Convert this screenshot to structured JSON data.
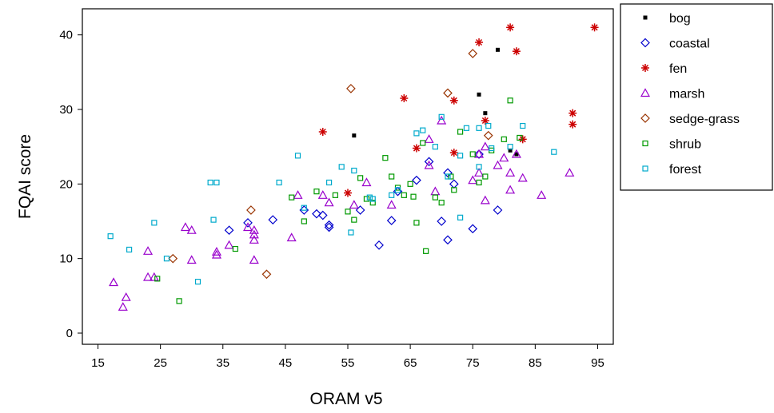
{
  "chart_data": {
    "type": "scatter",
    "xlabel": "ORAM v5",
    "ylabel": "FQAI score",
    "xlim": [
      12.5,
      97.5
    ],
    "ylim": [
      -1.5,
      43.5
    ],
    "xticks": [
      15,
      25,
      35,
      45,
      55,
      65,
      75,
      85,
      95
    ],
    "yticks": [
      0,
      10,
      20,
      30,
      40
    ],
    "grid": false,
    "legend_position": "right",
    "series": [
      {
        "name": "bog",
        "marker": "filled-square",
        "color": "#000000",
        "points": [
          [
            56,
            26.5
          ],
          [
            79,
            38
          ],
          [
            76,
            32
          ],
          [
            77,
            29.5
          ],
          [
            81,
            24.5
          ],
          [
            82,
            24
          ]
        ]
      },
      {
        "name": "coastal",
        "marker": "diamond",
        "color": "#0000cc",
        "points": [
          [
            36,
            13.8
          ],
          [
            39,
            14.8
          ],
          [
            43,
            15.2
          ],
          [
            48,
            16.5
          ],
          [
            50,
            16
          ],
          [
            51,
            15.8
          ],
          [
            52,
            14.5
          ],
          [
            52,
            14.2
          ],
          [
            57,
            16.5
          ],
          [
            60,
            11.8
          ],
          [
            62,
            15.1
          ],
          [
            63,
            19
          ],
          [
            66,
            20.5
          ],
          [
            68,
            23
          ],
          [
            70,
            15
          ],
          [
            71,
            21.5
          ],
          [
            71,
            12.5
          ],
          [
            72,
            20
          ],
          [
            75,
            14
          ],
          [
            76,
            24
          ],
          [
            79,
            16.5
          ]
        ]
      },
      {
        "name": "fen",
        "marker": "star",
        "color": "#cc0000",
        "points": [
          [
            51,
            27
          ],
          [
            55,
            18.8
          ],
          [
            64,
            31.5
          ],
          [
            66,
            24.8
          ],
          [
            72,
            31.2
          ],
          [
            72,
            24.2
          ],
          [
            76,
            39
          ],
          [
            77,
            28.5
          ],
          [
            81,
            41
          ],
          [
            82,
            37.8
          ],
          [
            83,
            26
          ],
          [
            91,
            29.5
          ],
          [
            91,
            28
          ],
          [
            94.5,
            41
          ]
        ]
      },
      {
        "name": "marsh",
        "marker": "triangle",
        "color": "#9900cc",
        "points": [
          [
            17.5,
            6.8
          ],
          [
            19,
            3.5
          ],
          [
            19.5,
            4.8
          ],
          [
            23,
            7.5
          ],
          [
            23,
            11
          ],
          [
            24,
            7.5
          ],
          [
            29,
            14.2
          ],
          [
            30,
            9.8
          ],
          [
            30,
            13.8
          ],
          [
            34,
            10.5
          ],
          [
            34,
            10.9
          ],
          [
            36,
            11.8
          ],
          [
            39,
            14.2
          ],
          [
            40,
            13.2
          ],
          [
            40,
            12.5
          ],
          [
            40,
            9.8
          ],
          [
            40,
            13.8
          ],
          [
            46,
            12.8
          ],
          [
            47,
            18.5
          ],
          [
            51,
            18.5
          ],
          [
            52,
            17.5
          ],
          [
            56,
            17.2
          ],
          [
            58,
            20.2
          ],
          [
            62,
            17.2
          ],
          [
            68,
            26
          ],
          [
            68,
            22.5
          ],
          [
            69,
            19
          ],
          [
            70,
            28.5
          ],
          [
            75,
            20.5
          ],
          [
            76,
            24
          ],
          [
            76,
            21.5
          ],
          [
            77,
            25
          ],
          [
            77,
            17.8
          ],
          [
            79,
            22.5
          ],
          [
            80,
            23.5
          ],
          [
            81,
            21.5
          ],
          [
            81,
            19.2
          ],
          [
            82,
            24
          ],
          [
            83,
            20.8
          ],
          [
            86,
            18.5
          ],
          [
            90.5,
            21.5
          ]
        ]
      },
      {
        "name": "sedge-grass",
        "marker": "diamond",
        "color": "#993300",
        "points": [
          [
            27,
            10
          ],
          [
            39.5,
            16.5
          ],
          [
            42,
            7.9
          ],
          [
            55.5,
            32.8
          ],
          [
            71,
            32.2
          ],
          [
            75,
            37.5
          ],
          [
            77.5,
            26.5
          ]
        ]
      },
      {
        "name": "shrub",
        "marker": "square",
        "color": "#009900",
        "points": [
          [
            24.5,
            7.3
          ],
          [
            28,
            4.3
          ],
          [
            37,
            11.3
          ],
          [
            46,
            18.2
          ],
          [
            48,
            15
          ],
          [
            50,
            19
          ],
          [
            53,
            18.5
          ],
          [
            55,
            16.3
          ],
          [
            56,
            15.2
          ],
          [
            57,
            20.8
          ],
          [
            58,
            18
          ],
          [
            59,
            17.5
          ],
          [
            61,
            23.5
          ],
          [
            62,
            21
          ],
          [
            63,
            19.5
          ],
          [
            64,
            18.5
          ],
          [
            65,
            20
          ],
          [
            65.5,
            18.3
          ],
          [
            66,
            14.8
          ],
          [
            67,
            25.5
          ],
          [
            67.5,
            11
          ],
          [
            69,
            18.2
          ],
          [
            70,
            17.5
          ],
          [
            71.5,
            21
          ],
          [
            72,
            19.2
          ],
          [
            73,
            27
          ],
          [
            75,
            24
          ],
          [
            76,
            20.2
          ],
          [
            77,
            21
          ],
          [
            78,
            24.5
          ],
          [
            80,
            26
          ],
          [
            81,
            31.2
          ],
          [
            82.5,
            26.2
          ]
        ]
      },
      {
        "name": "forest",
        "marker": "square",
        "color": "#00aacc",
        "points": [
          [
            17,
            13
          ],
          [
            20,
            11.2
          ],
          [
            24,
            14.8
          ],
          [
            26,
            10
          ],
          [
            31,
            6.9
          ],
          [
            33,
            20.2
          ],
          [
            34,
            20.2
          ],
          [
            33.5,
            15.2
          ],
          [
            44,
            20.2
          ],
          [
            47,
            23.8
          ],
          [
            48,
            16.8
          ],
          [
            52,
            20.2
          ],
          [
            54,
            22.3
          ],
          [
            55.5,
            13.5
          ],
          [
            56,
            21.8
          ],
          [
            58.5,
            18.2
          ],
          [
            59,
            18
          ],
          [
            62,
            18.5
          ],
          [
            63,
            19.2
          ],
          [
            66,
            26.8
          ],
          [
            67,
            27.2
          ],
          [
            69,
            25
          ],
          [
            70,
            29
          ],
          [
            71,
            21
          ],
          [
            73,
            23.8
          ],
          [
            73,
            15.5
          ],
          [
            74,
            27.5
          ],
          [
            76,
            27.5
          ],
          [
            76,
            22.3
          ],
          [
            77.5,
            27.8
          ],
          [
            78,
            24.8
          ],
          [
            81,
            25
          ],
          [
            83,
            27.8
          ],
          [
            88,
            24.3
          ]
        ]
      }
    ]
  }
}
